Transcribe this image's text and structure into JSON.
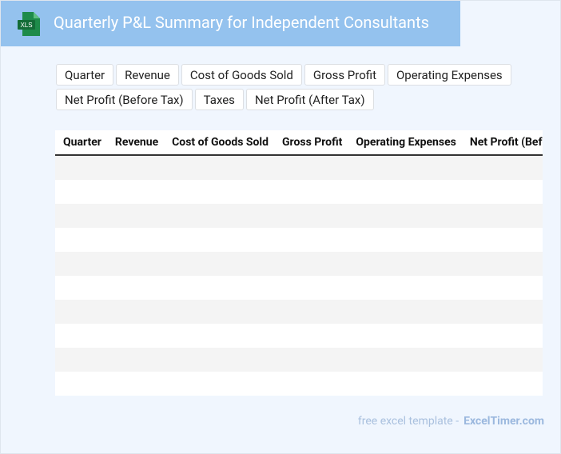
{
  "header": {
    "icon": "XLS",
    "title": "Quarterly P&L Summary for Independent Consultants"
  },
  "chips": [
    "Quarter",
    "Revenue",
    "Cost of Goods Sold",
    "Gross Profit",
    "Operating Expenses",
    "Net Profit (Before Tax)",
    "Taxes",
    "Net Profit (After Tax)"
  ],
  "table": {
    "columns": [
      "Quarter",
      "Revenue",
      "Cost of Goods Sold",
      "Gross Profit",
      "Operating Expenses",
      "Net Profit (Before Tax)"
    ]
  },
  "footer": {
    "text": "free excel template -",
    "link": "ExcelTimer.com"
  }
}
